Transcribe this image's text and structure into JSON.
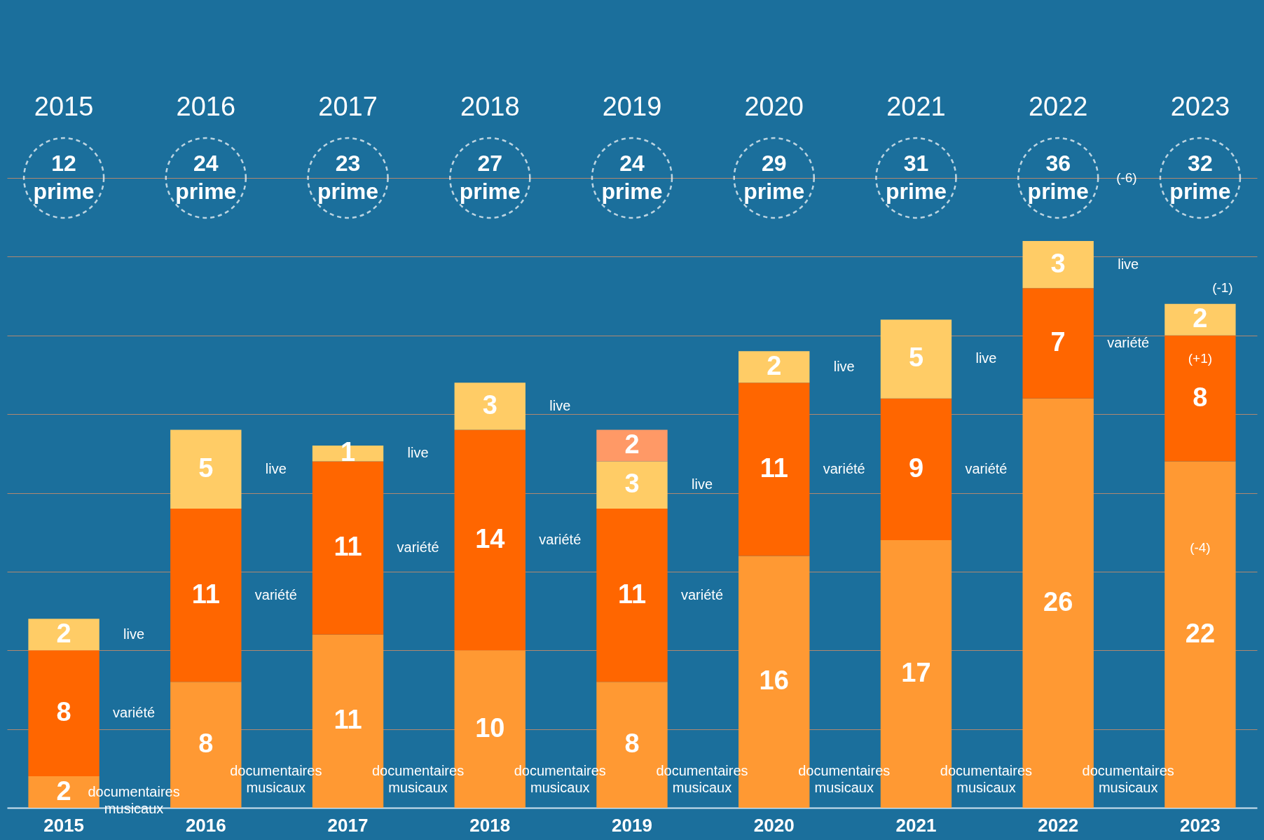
{
  "chart_data": {
    "type": "bar",
    "stacked": true,
    "categories": [
      "2015",
      "2016",
      "2017",
      "2018",
      "2019",
      "2020",
      "2021",
      "2022",
      "2023"
    ],
    "series": [
      {
        "name": "documentaires musicaux",
        "color": "#ff9933",
        "values": [
          2,
          8,
          11,
          10,
          8,
          16,
          17,
          26,
          22
        ]
      },
      {
        "name": "variété",
        "color": "#ff6600",
        "values": [
          8,
          11,
          11,
          14,
          11,
          11,
          9,
          7,
          8
        ]
      },
      {
        "name": "live",
        "color": "#ffcc66",
        "values": [
          2,
          5,
          1,
          3,
          3,
          2,
          5,
          3,
          2
        ]
      },
      {
        "color": "#ff9966",
        "values": [
          null,
          null,
          null,
          null,
          2,
          null,
          null,
          null,
          null
        ]
      }
    ],
    "annotations": [
      "12\nprime",
      "24\nprime",
      "23\nprime",
      "27\nprime",
      "24\nprime",
      "29\nprime",
      "31\nprime",
      "36\nprime",
      "32\nprime",
      "(-6)",
      "(-1)",
      "(+1)",
      "(-4)"
    ],
    "data_labels": true,
    "grid": "y",
    "tick_labels": "x",
    "ylim": [
      0,
      40
    ],
    "yticks": [
      {
        "value": 5,
        "label": null
      },
      {
        "value": 10,
        "label": null
      },
      {
        "value": 15,
        "label": null
      },
      {
        "value": 20,
        "label": null
      },
      {
        "value": 25,
        "label": null
      },
      {
        "value": 30,
        "label": null
      },
      {
        "value": 35,
        "label": null
      },
      {
        "value": 40,
        "label": null
      }
    ]
  }
}
